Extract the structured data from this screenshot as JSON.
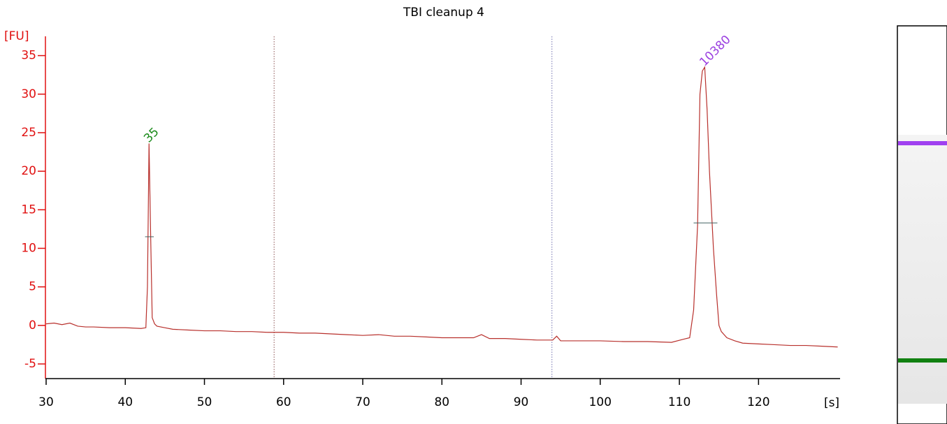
{
  "chart_data": {
    "type": "line",
    "title": "TBI cleanup 4",
    "y_label": "[FU]",
    "x_label": "[s]",
    "xlim": [
      30,
      130.3
    ],
    "ylim": [
      -6.9,
      37.5
    ],
    "xticks": [
      30,
      40,
      50,
      60,
      70,
      80,
      90,
      100,
      110,
      120
    ],
    "yticks": [
      -5,
      0,
      5,
      10,
      15,
      20,
      25,
      30,
      35
    ],
    "axis_color": "#e01010",
    "series": [
      {
        "color": "#b8302c",
        "x": [
          30,
          31,
          32,
          33,
          34,
          35,
          36,
          38,
          40,
          42,
          42.6,
          42.8,
          43,
          43.2,
          43.4,
          43.7,
          44,
          45,
          46,
          48,
          50,
          52,
          54,
          56,
          58,
          60,
          62,
          64,
          66,
          68,
          70,
          72,
          74,
          76,
          78,
          80,
          82,
          84,
          85,
          86,
          88,
          90,
          92,
          94,
          94.5,
          95,
          97,
          100,
          103,
          106,
          109,
          110.5,
          111.3,
          111.8,
          112.3,
          112.6,
          112.9,
          113.2,
          113.5,
          113.8,
          114.3,
          114.7,
          115,
          115.3,
          116,
          117,
          118,
          120,
          122,
          124,
          126,
          128,
          130
        ],
        "values": [
          0.2,
          0.3,
          0.1,
          0.3,
          -0.1,
          -0.2,
          -0.2,
          -0.3,
          -0.3,
          -0.4,
          -0.3,
          5,
          23.6,
          12,
          1,
          0.2,
          -0.1,
          -0.3,
          -0.5,
          -0.6,
          -0.7,
          -0.7,
          -0.8,
          -0.8,
          -0.9,
          -0.9,
          -1.0,
          -1.0,
          -1.1,
          -1.2,
          -1.3,
          -1.2,
          -1.4,
          -1.4,
          -1.5,
          -1.6,
          -1.6,
          -1.6,
          -1.2,
          -1.7,
          -1.7,
          -1.8,
          -1.9,
          -1.9,
          -1.4,
          -2.0,
          -2.0,
          -2.0,
          -2.1,
          -2.1,
          -2.2,
          -1.8,
          -1.6,
          2,
          13,
          30,
          33,
          33.5,
          28,
          20,
          10,
          4,
          0,
          -0.8,
          -1.6,
          -2.0,
          -2.3,
          -2.4,
          -2.5,
          -2.6,
          -2.6,
          -2.7,
          -2.8
        ]
      }
    ],
    "markers": [
      58.8,
      93.9
    ],
    "peak_widths": [
      {
        "x0": 42.5,
        "x1": 43.6,
        "y": 11.5
      },
      {
        "x0": 111.8,
        "x1": 114.8,
        "y": 13.3
      }
    ],
    "annotations": [
      {
        "label": "35",
        "x": 43,
        "y": 23.6,
        "color": "#1a8a1a"
      },
      {
        "label": "10380",
        "x": 113.2,
        "y": 33.5,
        "color": "#9b40e0"
      }
    ]
  }
}
